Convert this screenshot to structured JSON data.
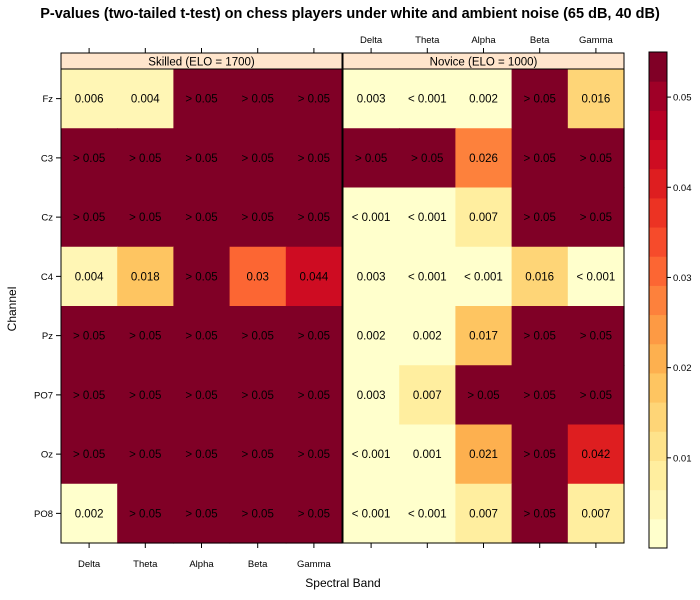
{
  "chart_data": {
    "type": "heatmap",
    "title": "P-values (two-tailed t-test) on chess players under white and ambient noise (65 dB, 40 dB)",
    "xlabel": "Spectral Band",
    "ylabel": "Channel",
    "bands": [
      "Delta",
      "Theta",
      "Alpha",
      "Beta",
      "Gamma"
    ],
    "channels": [
      "Fz",
      "C3",
      "Cz",
      "C4",
      "Pz",
      "PO7",
      "Oz",
      "PO8"
    ],
    "panels": [
      {
        "name": "Skilled (ELO = 1700)",
        "values": [
          [
            0.006,
            0.004,
            0.06,
            0.06,
            0.06
          ],
          [
            0.06,
            0.06,
            0.06,
            0.06,
            0.06
          ],
          [
            0.06,
            0.06,
            0.06,
            0.06,
            0.06
          ],
          [
            0.004,
            0.018,
            0.06,
            0.03,
            0.044
          ],
          [
            0.06,
            0.06,
            0.06,
            0.06,
            0.06
          ],
          [
            0.06,
            0.06,
            0.06,
            0.06,
            0.06
          ],
          [
            0.06,
            0.06,
            0.06,
            0.06,
            0.06
          ],
          [
            0.002,
            0.06,
            0.06,
            0.06,
            0.06
          ]
        ],
        "labels": [
          [
            "0.006",
            "0.004",
            "> 0.05",
            "> 0.05",
            "> 0.05"
          ],
          [
            "> 0.05",
            "> 0.05",
            "> 0.05",
            "> 0.05",
            "> 0.05"
          ],
          [
            "> 0.05",
            "> 0.05",
            "> 0.05",
            "> 0.05",
            "> 0.05"
          ],
          [
            "0.004",
            "0.018",
            "> 0.05",
            "0.03",
            "0.044"
          ],
          [
            "> 0.05",
            "> 0.05",
            "> 0.05",
            "> 0.05",
            "> 0.05"
          ],
          [
            "> 0.05",
            "> 0.05",
            "> 0.05",
            "> 0.05",
            "> 0.05"
          ],
          [
            "> 0.05",
            "> 0.05",
            "> 0.05",
            "> 0.05",
            "> 0.05"
          ],
          [
            "0.002",
            "> 0.05",
            "> 0.05",
            "> 0.05",
            "> 0.05"
          ]
        ]
      },
      {
        "name": "Novice (ELO = 1000)",
        "values": [
          [
            0.003,
            0.0005,
            0.002,
            0.06,
            0.016
          ],
          [
            0.06,
            0.06,
            0.026,
            0.06,
            0.06
          ],
          [
            0.0005,
            0.0005,
            0.007,
            0.06,
            0.06
          ],
          [
            0.003,
            0.0005,
            0.0005,
            0.016,
            0.0005
          ],
          [
            0.002,
            0.002,
            0.017,
            0.06,
            0.06
          ],
          [
            0.003,
            0.007,
            0.06,
            0.06,
            0.06
          ],
          [
            0.0005,
            0.001,
            0.021,
            0.06,
            0.042
          ],
          [
            0.0005,
            0.0005,
            0.007,
            0.06,
            0.007
          ]
        ],
        "labels": [
          [
            "0.003",
            "< 0.001",
            "0.002",
            "> 0.05",
            "0.016"
          ],
          [
            "> 0.05",
            "> 0.05",
            "0.026",
            "> 0.05",
            "> 0.05"
          ],
          [
            "< 0.001",
            "< 0.001",
            "0.007",
            "> 0.05",
            "> 0.05"
          ],
          [
            "0.003",
            "< 0.001",
            "< 0.001",
            "0.016",
            "< 0.001"
          ],
          [
            "0.002",
            "0.002",
            "0.017",
            "> 0.05",
            "> 0.05"
          ],
          [
            "0.003",
            "0.007",
            "> 0.05",
            "> 0.05",
            "> 0.05"
          ],
          [
            "< 0.001",
            "0.001",
            "0.021",
            "> 0.05",
            "0.042"
          ],
          [
            "< 0.001",
            "< 0.001",
            "0.007",
            "> 0.05",
            "0.007"
          ]
        ]
      }
    ],
    "colorbar": {
      "range": [
        0,
        0.055
      ],
      "ticks": [
        0.01,
        0.02,
        0.03,
        0.04,
        0.05
      ],
      "tick_labels": [
        "0.01",
        "0.02",
        "0.03",
        "0.04",
        "0.05"
      ],
      "colors": [
        "#FFFFCC",
        "#FFF6B5",
        "#FFEE9F",
        "#FEE38B",
        "#FED577",
        "#FEC561",
        "#FDB04F",
        "#FD9A44",
        "#FD813C",
        "#FC6633",
        "#F64B2B",
        "#EC3323",
        "#DE1E20",
        "#CE0C22",
        "#B70025",
        "#9F0027",
        "#800026"
      ],
      "above_color": "#800026"
    }
  }
}
